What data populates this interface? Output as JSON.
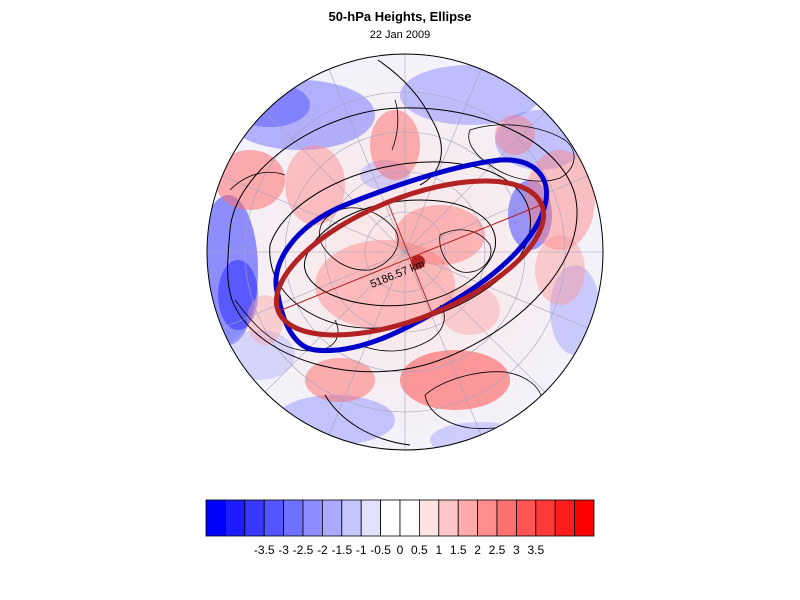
{
  "header": {
    "title": "50-hPa Heights, Ellipse",
    "date": "22 Jan 2009"
  },
  "map": {
    "projection": "polar stereographic (north pole)",
    "ellipse_label": "5186.57 km",
    "colors": {
      "ellipse_fit": "#b22222",
      "vortex_edge_contour": "#0000cc",
      "height_contours": "#000000",
      "coastlines": "#000000",
      "grid": "#9a9ab0"
    }
  },
  "colorbar": {
    "tick_labels": [
      "-3.5",
      "-3",
      "-2.5",
      "-2",
      "-1.5",
      "-1",
      "-0.5",
      "0",
      "0.5",
      "1",
      "1.5",
      "2",
      "2.5",
      "3",
      "3.5"
    ],
    "colors": [
      "#0000ff",
      "#1c1cff",
      "#3838ff",
      "#5555ff",
      "#7171ff",
      "#8d8dff",
      "#aaaaff",
      "#c6c6ff",
      "#e2e2ff",
      "#ffffff",
      "#ffffff",
      "#ffe2e2",
      "#ffc6c6",
      "#ffaaaa",
      "#ff8d8d",
      "#ff7171",
      "#ff5555",
      "#ff3838",
      "#ff1c1c",
      "#ff0000"
    ]
  }
}
